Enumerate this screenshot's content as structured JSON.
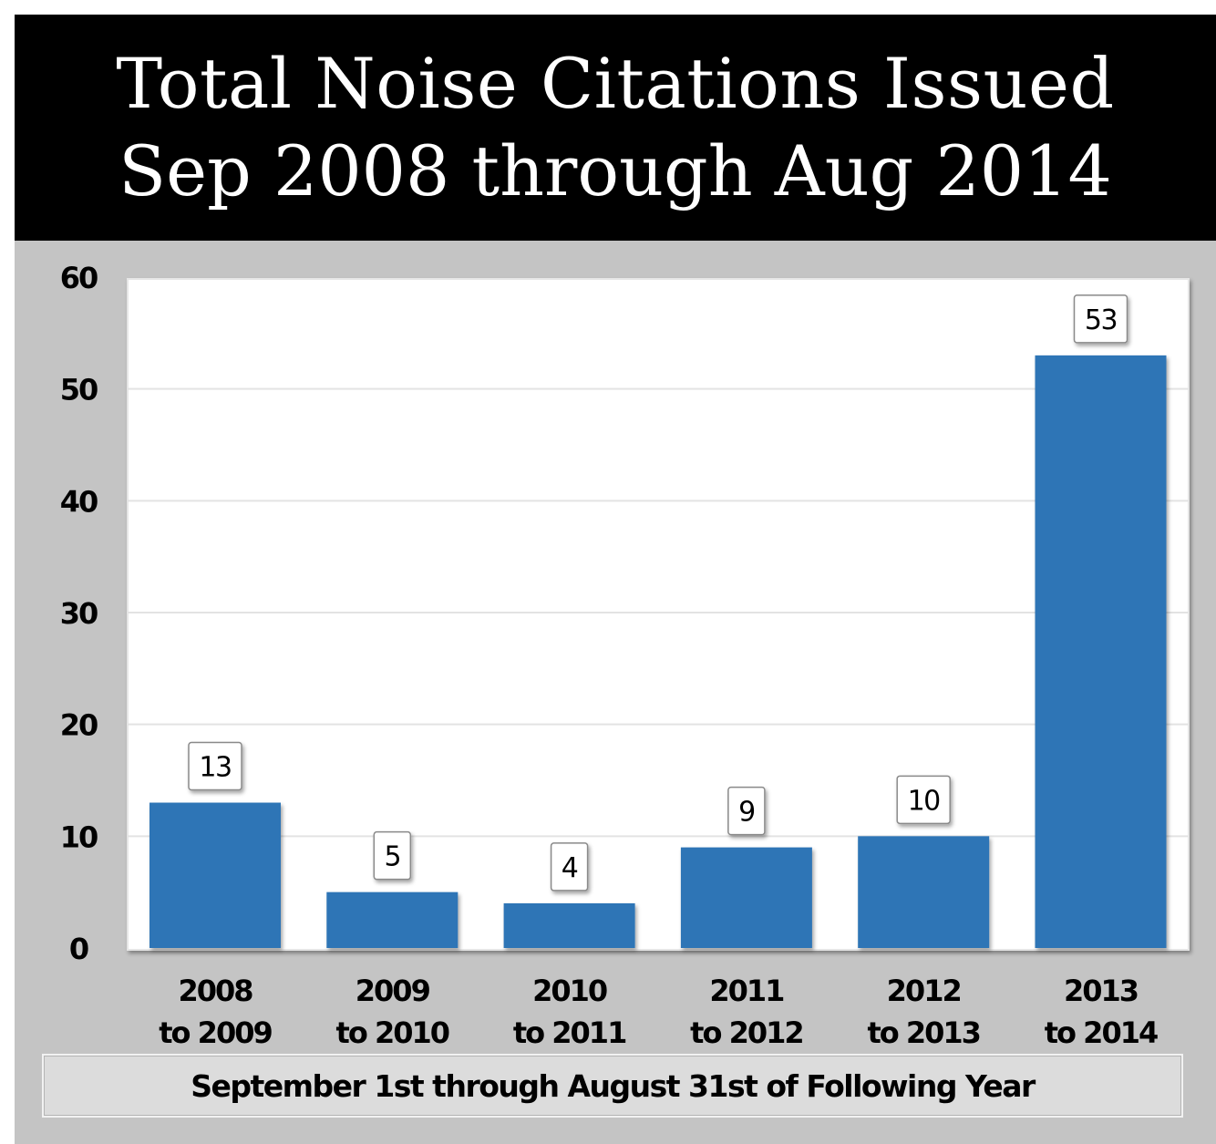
{
  "chart_data": {
    "type": "bar",
    "title": "Total Noise Citations Issued",
    "subtitle": "Sep 2008 through Aug 2014",
    "xlabel": "September 1st through August 31st of Following Year",
    "ylabel": "",
    "ylim": [
      0,
      60
    ],
    "yticks": [
      "0",
      "10",
      "20",
      "30",
      "40",
      "50",
      "60"
    ],
    "categories": [
      [
        "2008",
        "to 2009"
      ],
      [
        "2009",
        "to 2010"
      ],
      [
        "2010",
        "to 2011"
      ],
      [
        "2011",
        "to 2012"
      ],
      [
        "2012",
        "to 2013"
      ],
      [
        "2013",
        "to 2014"
      ]
    ],
    "values": [
      13,
      5,
      4,
      9,
      10,
      53
    ],
    "data_labels": [
      "13",
      "5",
      "4",
      "9",
      "10",
      "53"
    ],
    "grid": true,
    "legend": "none",
    "colors": {
      "bar": "#2e75b6",
      "title_background": "#000000",
      "frame_background": "#c4c4c4",
      "plot_background": "#ffffff"
    }
  }
}
